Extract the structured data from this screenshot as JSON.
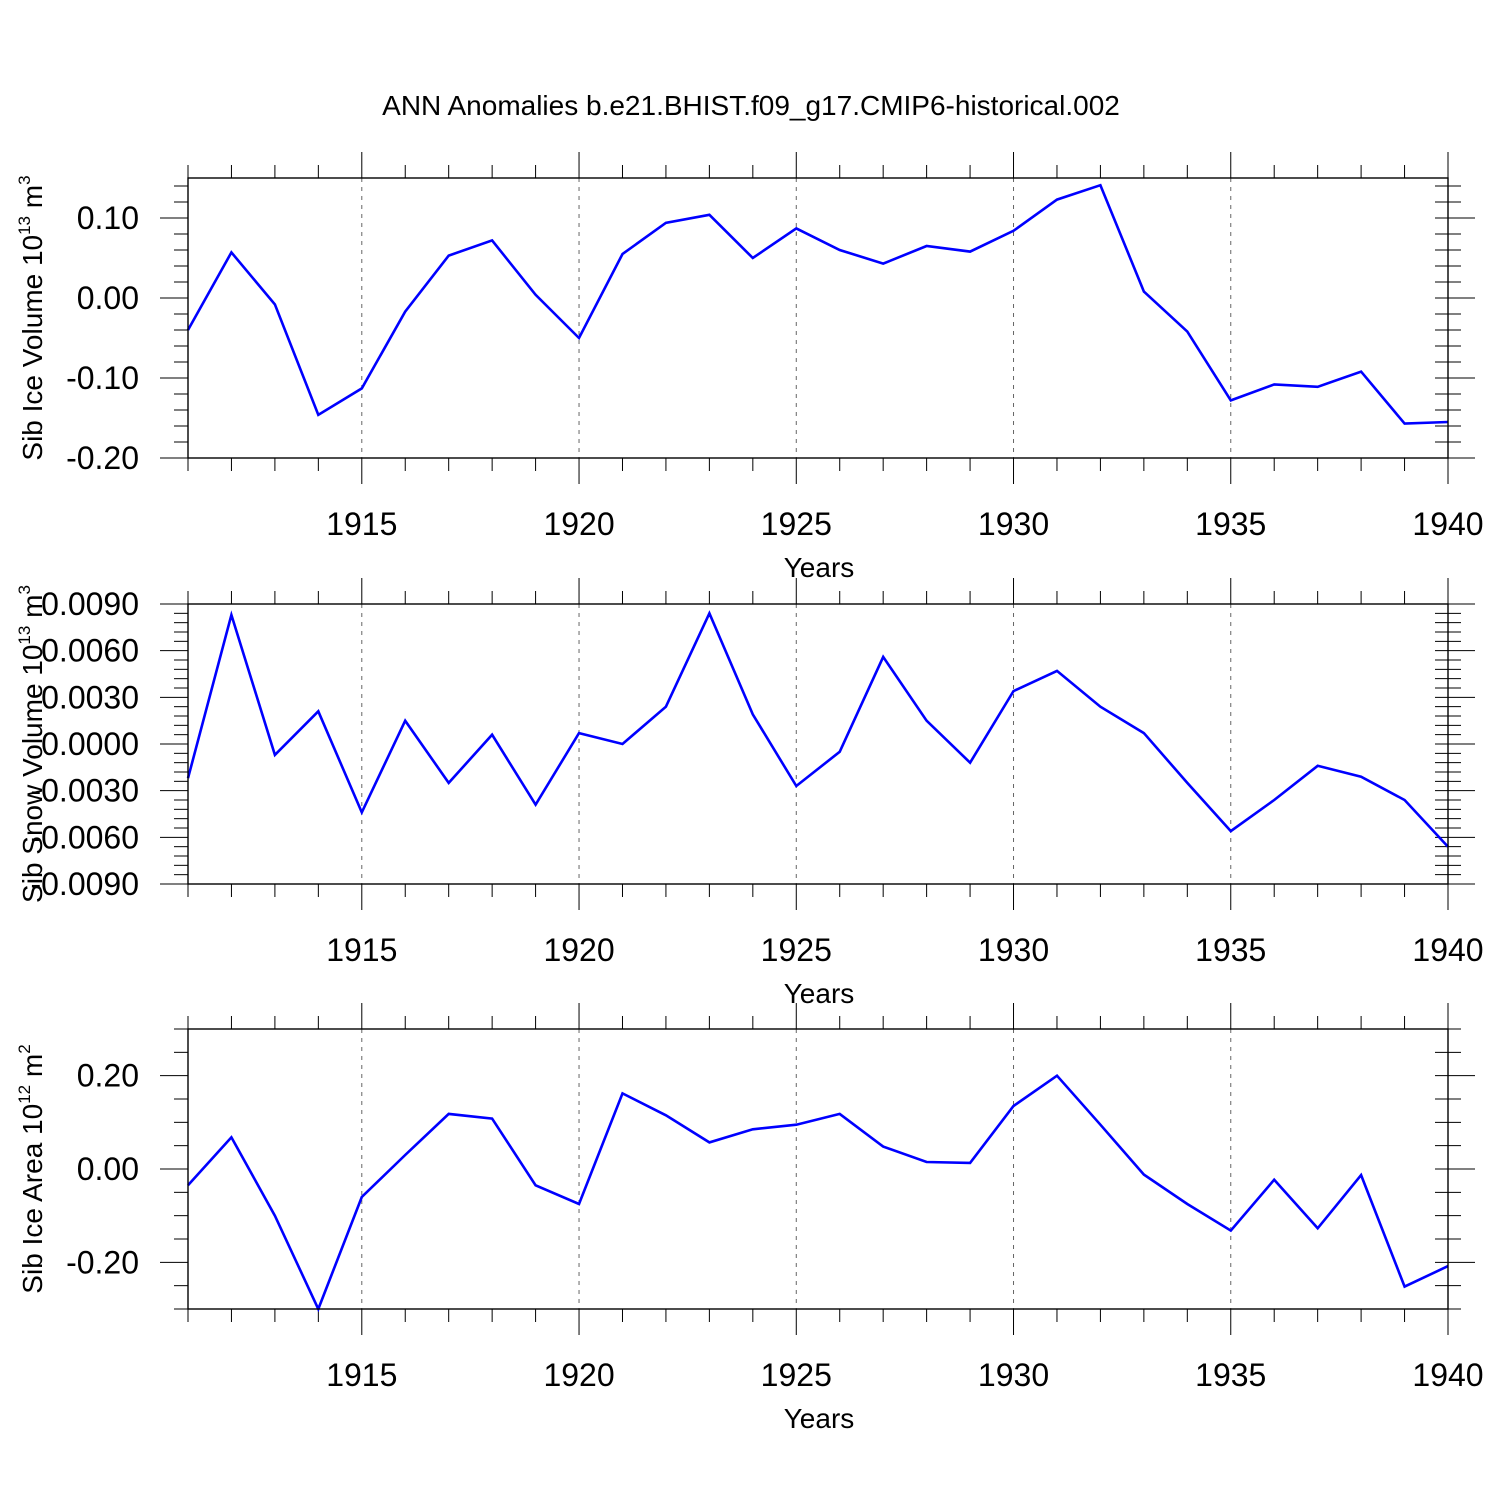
{
  "figure": {
    "title": "ANN Anomalies b.e21.BHIST.f09_g17.CMIP6-historical.002"
  },
  "colors": {
    "series": "#0000ff",
    "axis": "#000000",
    "grid": "#666666"
  },
  "chart_data": [
    {
      "type": "line",
      "title": "ANN Anomalies b.e21.BHIST.f09_g17.CMIP6-historical.002",
      "xlabel": "Years",
      "ylabel": "Sib Ice Volume 10",
      "ylabel_exp": "13",
      "ylabel_unit": " m",
      "ylabel_unit_exp": "3",
      "xlim": [
        1911,
        1940
      ],
      "ylim": [
        -0.2,
        0.15
      ],
      "yticks": [
        -0.2,
        -0.1,
        0.0,
        0.1
      ],
      "ytick_labels": [
        "-0.20",
        "-0.10",
        "0.00",
        "0.10"
      ],
      "yminor_step": 0.02,
      "xticks": [
        1915,
        1920,
        1925,
        1930,
        1935,
        1940
      ],
      "xtick_labels": [
        "1915",
        "1920",
        "1925",
        "1930",
        "1935",
        "1940"
      ],
      "grid": "x",
      "x": [
        1911,
        1912,
        1913,
        1914,
        1915,
        1916,
        1917,
        1918,
        1919,
        1920,
        1921,
        1922,
        1923,
        1924,
        1925,
        1926,
        1927,
        1928,
        1929,
        1930,
        1931,
        1932,
        1933,
        1934,
        1935,
        1936,
        1937,
        1938,
        1939,
        1940
      ],
      "series": [
        {
          "name": "Sib Ice Volume",
          "values": [
            -0.04,
            0.057,
            -0.008,
            -0.146,
            -0.113,
            -0.017,
            0.053,
            0.072,
            0.004,
            -0.05,
            0.055,
            0.094,
            0.104,
            0.05,
            0.087,
            0.06,
            0.043,
            0.065,
            0.058,
            0.084,
            0.123,
            0.141,
            0.008,
            -0.042,
            -0.128,
            -0.108,
            -0.111,
            -0.092,
            -0.157,
            -0.155
          ]
        }
      ]
    },
    {
      "type": "line",
      "xlabel": "Years",
      "ylabel": "Sib Snow Volume 10",
      "ylabel_exp": "13",
      "ylabel_unit": " m",
      "ylabel_unit_exp": "3",
      "xlim": [
        1911,
        1940
      ],
      "ylim": [
        -0.009,
        0.009
      ],
      "yticks": [
        -0.009,
        -0.006,
        -0.003,
        0.0,
        0.003,
        0.006,
        0.009
      ],
      "ytick_labels": [
        "-0.0090",
        "-0.0060",
        "-0.0030",
        "0.0000",
        "0.0030",
        "0.0060",
        "0.0090"
      ],
      "yminor_step": 0.0006,
      "xticks": [
        1915,
        1920,
        1925,
        1930,
        1935,
        1940
      ],
      "xtick_labels": [
        "1915",
        "1920",
        "1925",
        "1930",
        "1935",
        "1940"
      ],
      "grid": "x",
      "x": [
        1911,
        1912,
        1913,
        1914,
        1915,
        1916,
        1917,
        1918,
        1919,
        1920,
        1921,
        1922,
        1923,
        1924,
        1925,
        1926,
        1927,
        1928,
        1929,
        1930,
        1931,
        1932,
        1933,
        1934,
        1935,
        1936,
        1937,
        1938,
        1939,
        1940
      ],
      "series": [
        {
          "name": "Sib Snow Volume",
          "values": [
            -0.0022,
            0.0083,
            -0.0007,
            0.0021,
            -0.0044,
            0.0015,
            -0.0025,
            0.0006,
            -0.0039,
            0.0007,
            0.0,
            0.0024,
            0.0084,
            0.0019,
            -0.0027,
            -0.0005,
            0.0056,
            0.0015,
            -0.0012,
            0.0034,
            0.0047,
            0.0024,
            0.0007,
            -0.0025,
            -0.0056,
            -0.0036,
            -0.0014,
            -0.0021,
            -0.0036,
            -0.0066
          ]
        }
      ]
    },
    {
      "type": "line",
      "xlabel": "Years",
      "ylabel": "Sib Ice Area 10",
      "ylabel_exp": "12",
      "ylabel_unit": " m",
      "ylabel_unit_exp": "2",
      "xlim": [
        1911,
        1940
      ],
      "ylim": [
        -0.3,
        0.3
      ],
      "yticks": [
        -0.2,
        0.0,
        0.2
      ],
      "ytick_labels": [
        "-0.20",
        "0.00",
        "0.20"
      ],
      "yminor_step": 0.05,
      "xticks": [
        1915,
        1920,
        1925,
        1930,
        1935,
        1940
      ],
      "xtick_labels": [
        "1915",
        "1920",
        "1925",
        "1930",
        "1935",
        "1940"
      ],
      "grid": "x",
      "x": [
        1911,
        1912,
        1913,
        1914,
        1915,
        1916,
        1917,
        1918,
        1919,
        1920,
        1921,
        1922,
        1923,
        1924,
        1925,
        1926,
        1927,
        1928,
        1929,
        1930,
        1931,
        1932,
        1933,
        1934,
        1935,
        1936,
        1937,
        1938,
        1939,
        1940
      ],
      "series": [
        {
          "name": "Sib Ice Area",
          "values": [
            -0.035,
            0.068,
            -0.1,
            -0.3,
            -0.06,
            0.03,
            0.118,
            0.108,
            -0.035,
            -0.075,
            0.162,
            0.115,
            0.057,
            0.085,
            0.095,
            0.118,
            0.048,
            0.015,
            0.013,
            0.135,
            0.2,
            0.095,
            -0.012,
            -0.075,
            -0.132,
            -0.023,
            -0.127,
            -0.013,
            -0.252,
            -0.208
          ]
        }
      ]
    }
  ]
}
